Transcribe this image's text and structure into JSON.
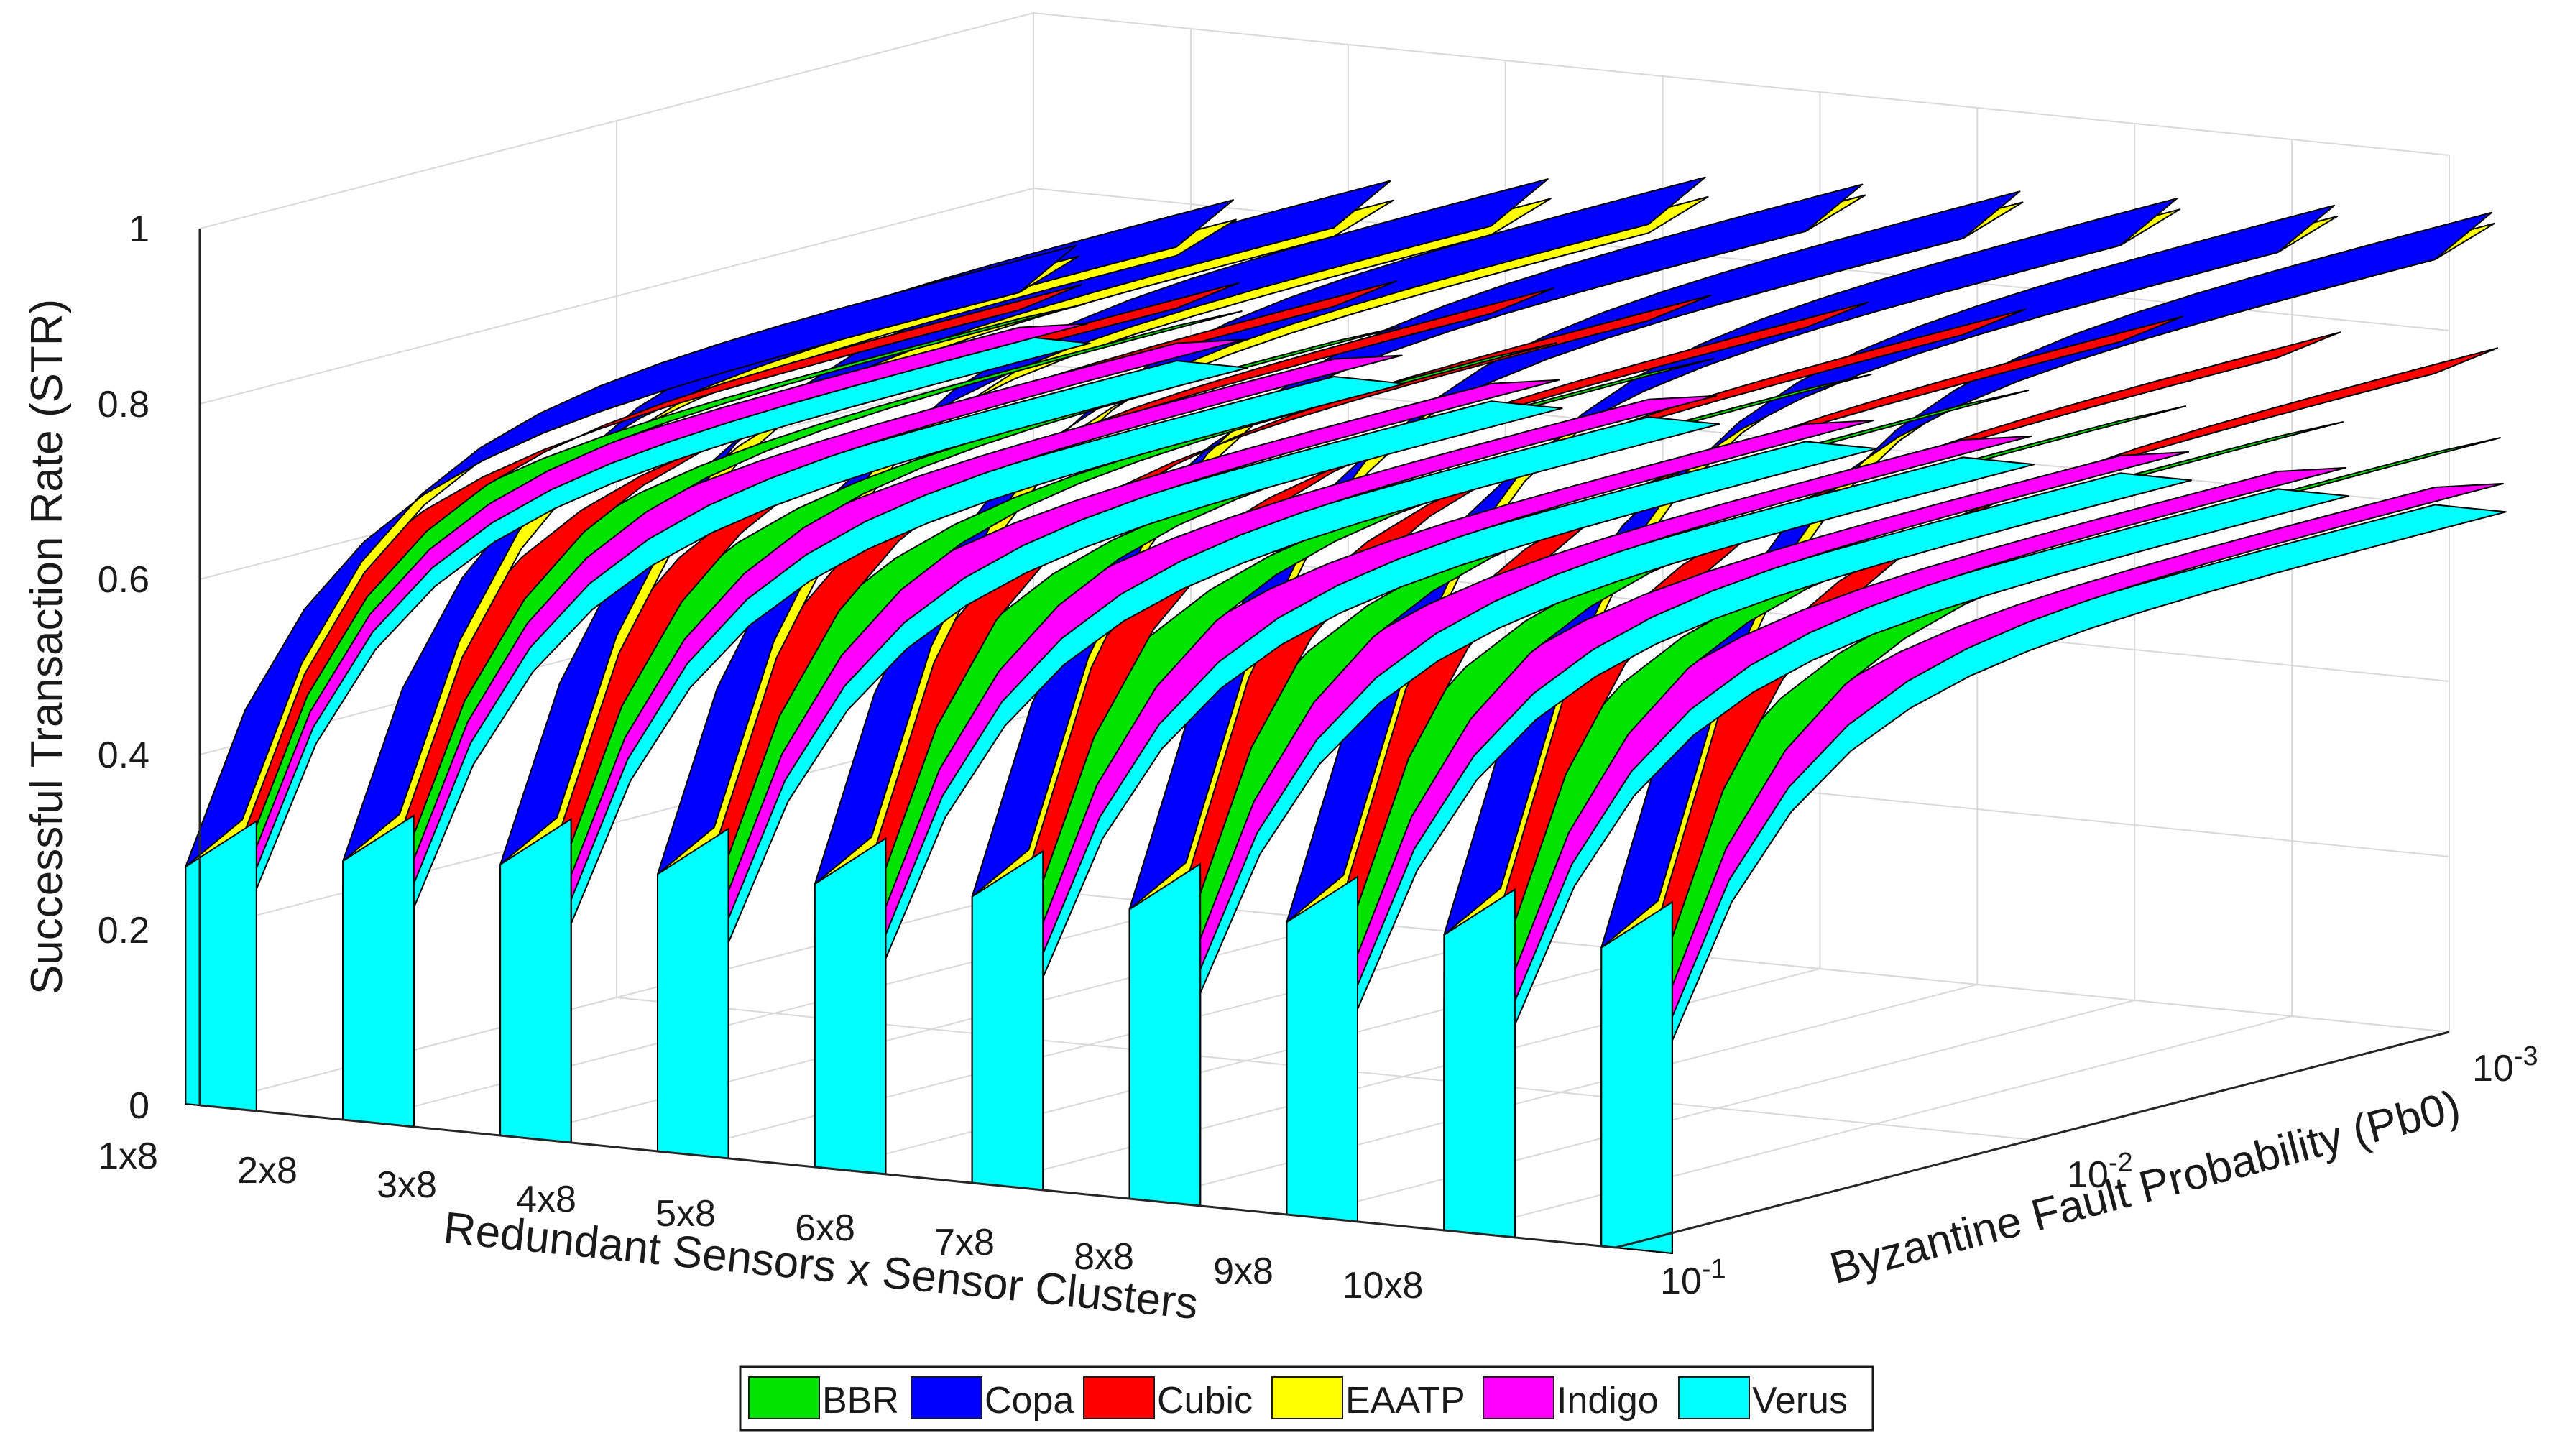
{
  "chart_data": {
    "type": "surface3d",
    "title": "",
    "zlabel": "Successful Transaction Rate (STR)",
    "xlabel": "Redundant Sensors x Sensor Clusters",
    "ylabel": "Byzantine Fault Probability (Pb0)",
    "z_ticks": [
      "0",
      "0.2",
      "0.4",
      "0.6",
      "0.8",
      "1"
    ],
    "z_tick_values": [
      0,
      0.2,
      0.4,
      0.6,
      0.8,
      1
    ],
    "zlim": [
      0,
      1
    ],
    "x_categories": [
      "1x8",
      "2x8",
      "3x8",
      "4x8",
      "5x8",
      "6x8",
      "7x8",
      "8x8",
      "9x8",
      "10x8"
    ],
    "y_ticks": [
      {
        "base": "10",
        "exp": "-1",
        "value": 0.1
      },
      {
        "base": "10",
        "exp": "-2",
        "value": 0.01
      },
      {
        "base": "10",
        "exp": "-3",
        "value": 0.001
      }
    ],
    "legend": [
      {
        "name": "BBR",
        "color": "#00e400"
      },
      {
        "name": "Copa",
        "color": "#0000ff"
      },
      {
        "name": "Cubic",
        "color": "#ff0000"
      },
      {
        "name": "EAATP",
        "color": "#ffff00"
      },
      {
        "name": "Indigo",
        "color": "#ff00ff"
      },
      {
        "name": "Verus",
        "color": "#00ffff"
      }
    ],
    "legend_position": "bottom",
    "grid": true,
    "series_levels": [
      {
        "name": "Verus",
        "values": [
          0.63,
          0.62,
          0.62,
          0.61,
          0.61,
          0.6,
          0.6,
          0.6,
          0.6,
          0.6
        ]
      },
      {
        "name": "Indigo",
        "values": [
          0.64,
          0.64,
          0.64,
          0.63,
          0.63,
          0.62,
          0.62,
          0.62,
          0.62,
          0.62
        ]
      },
      {
        "name": "BBR",
        "values": [
          0.65,
          0.66,
          0.66,
          0.66,
          0.66,
          0.66,
          0.66,
          0.66,
          0.66,
          0.66
        ]
      },
      {
        "name": "Cubic",
        "values": [
          0.66,
          0.68,
          0.7,
          0.71,
          0.72,
          0.73,
          0.74,
          0.75,
          0.75,
          0.75
        ]
      },
      {
        "name": "EAATP",
        "values": [
          0.68,
          0.74,
          0.78,
          0.8,
          0.82,
          0.84,
          0.85,
          0.86,
          0.87,
          0.88
        ]
      },
      {
        "name": "Copa",
        "values": [
          0.68,
          0.75,
          0.79,
          0.81,
          0.83,
          0.84,
          0.85,
          0.86,
          0.87,
          0.88
        ]
      }
    ]
  }
}
